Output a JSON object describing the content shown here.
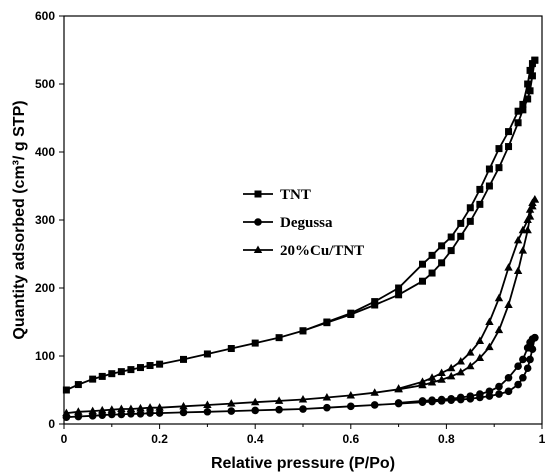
{
  "chart_data": {
    "type": "line",
    "xlabel": "Relative pressure (P/Po)",
    "ylabel": "Quantity adsorbed (cm³/ g STP)",
    "xlim": [
      0,
      1
    ],
    "ylim": [
      0,
      600
    ],
    "x_ticks": [
      "0",
      "0.2",
      "0.4",
      "0.6",
      "0.8",
      "1"
    ],
    "y_ticks": [
      "0",
      "100",
      "200",
      "300",
      "400",
      "500",
      "600"
    ],
    "grid": false,
    "legend_position": "center-left",
    "series": [
      {
        "name": "TNT",
        "marker": "square",
        "color": "#000000",
        "adsorption": {
          "x": [
            0.005,
            0.03,
            0.06,
            0.08,
            0.1,
            0.12,
            0.14,
            0.16,
            0.18,
            0.2,
            0.25,
            0.3,
            0.35,
            0.4,
            0.45,
            0.5,
            0.55,
            0.6,
            0.65,
            0.7,
            0.75,
            0.77,
            0.79,
            0.81,
            0.83,
            0.85,
            0.87,
            0.89,
            0.91,
            0.93,
            0.95,
            0.96,
            0.97,
            0.975,
            0.98,
            0.985
          ],
          "y": [
            50,
            58,
            66,
            70,
            74,
            77,
            80,
            83,
            86,
            88,
            95,
            103,
            111,
            119,
            127,
            137,
            149,
            161,
            175,
            190,
            210,
            222,
            237,
            255,
            276,
            298,
            323,
            350,
            377,
            408,
            443,
            462,
            478,
            490,
            512,
            535
          ]
        },
        "desorption": {
          "x": [
            0.985,
            0.98,
            0.975,
            0.97,
            0.96,
            0.95,
            0.93,
            0.91,
            0.89,
            0.87,
            0.85,
            0.83,
            0.81,
            0.79,
            0.77,
            0.75,
            0.7,
            0.65,
            0.6,
            0.55,
            0.5
          ],
          "y": [
            535,
            530,
            520,
            500,
            470,
            460,
            430,
            405,
            375,
            345,
            318,
            295,
            275,
            262,
            248,
            235,
            200,
            180,
            163,
            150,
            137
          ]
        }
      },
      {
        "name": "Degussa",
        "marker": "circle",
        "color": "#000000",
        "adsorption": {
          "x": [
            0.005,
            0.03,
            0.06,
            0.08,
            0.1,
            0.12,
            0.14,
            0.16,
            0.18,
            0.2,
            0.25,
            0.3,
            0.35,
            0.4,
            0.45,
            0.5,
            0.55,
            0.6,
            0.65,
            0.7,
            0.75,
            0.77,
            0.79,
            0.81,
            0.83,
            0.85,
            0.87,
            0.89,
            0.91,
            0.93,
            0.95,
            0.96,
            0.97,
            0.975,
            0.98,
            0.985
          ],
          "y": [
            10,
            11,
            12,
            13,
            14,
            14,
            15,
            15,
            16,
            16,
            17,
            18,
            19,
            20,
            21,
            22,
            24,
            26,
            28,
            30,
            32,
            33,
            34,
            35,
            36,
            37,
            39,
            41,
            44,
            48,
            58,
            68,
            82,
            95,
            110,
            127
          ]
        },
        "desorption": {
          "x": [
            0.985,
            0.98,
            0.975,
            0.97,
            0.96,
            0.95,
            0.93,
            0.91,
            0.89,
            0.87,
            0.85,
            0.83,
            0.81,
            0.79,
            0.77,
            0.75,
            0.7
          ],
          "y": [
            127,
            125,
            120,
            112,
            95,
            85,
            68,
            55,
            48,
            44,
            41,
            39,
            37,
            36,
            35,
            34,
            31
          ]
        }
      },
      {
        "name": "20%Cu/TNT",
        "marker": "triangle",
        "color": "#000000",
        "adsorption": {
          "x": [
            0.005,
            0.03,
            0.06,
            0.08,
            0.1,
            0.12,
            0.14,
            0.16,
            0.18,
            0.2,
            0.25,
            0.3,
            0.35,
            0.4,
            0.45,
            0.5,
            0.55,
            0.6,
            0.65,
            0.7,
            0.75,
            0.77,
            0.79,
            0.81,
            0.83,
            0.85,
            0.87,
            0.89,
            0.91,
            0.93,
            0.95,
            0.96,
            0.97,
            0.975,
            0.98,
            0.985
          ],
          "y": [
            16,
            18,
            19,
            20,
            21,
            22,
            22,
            23,
            24,
            24,
            26,
            28,
            30,
            32,
            34,
            36,
            39,
            42,
            46,
            51,
            57,
            61,
            65,
            70,
            76,
            85,
            97,
            113,
            138,
            175,
            225,
            255,
            285,
            305,
            320,
            330
          ]
        },
        "desorption": {
          "x": [
            0.985,
            0.98,
            0.975,
            0.97,
            0.96,
            0.95,
            0.93,
            0.91,
            0.89,
            0.87,
            0.85,
            0.83,
            0.81,
            0.79,
            0.77,
            0.75,
            0.7
          ],
          "y": [
            330,
            325,
            315,
            300,
            285,
            270,
            230,
            185,
            150,
            122,
            105,
            92,
            82,
            75,
            68,
            62,
            52
          ]
        }
      }
    ]
  }
}
